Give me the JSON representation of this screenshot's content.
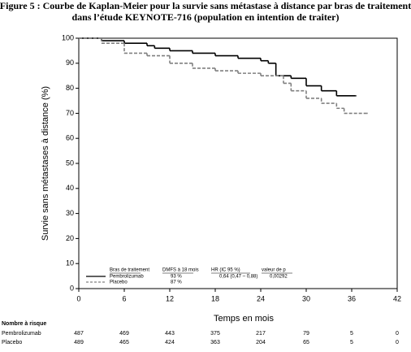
{
  "chart_data": {
    "type": "step",
    "title": [
      "Figure 5 : Courbe de Kaplan-Meier pour la survie sans métastase à distance par bras de traitement",
      "dans l’étude KEYNOTE-716 (population en intention de traiter)"
    ],
    "x_label": "Temps en mois",
    "y_label": "Survie sans métastases à distance (%)",
    "xlim": [
      0,
      42
    ],
    "xticks": [
      0,
      6,
      12,
      18,
      24,
      30,
      36,
      42
    ],
    "ylim": [
      0,
      100
    ],
    "yticks": [
      0,
      10,
      20,
      30,
      40,
      50,
      60,
      70,
      80,
      90,
      100
    ],
    "series": [
      {
        "name": "Pembrolizumab",
        "color": "#000000",
        "dash": false,
        "x": [
          0,
          3,
          6,
          9,
          10,
          12,
          15,
          18,
          21,
          24,
          25,
          26,
          28,
          30,
          32,
          34,
          36.5
        ],
        "values": [
          100,
          99,
          98,
          97,
          96,
          95,
          94,
          93,
          92,
          91,
          90,
          85,
          84,
          81,
          79,
          77,
          77
        ]
      },
      {
        "name": "Placebo",
        "color": "#808080",
        "dash": true,
        "x": [
          0,
          3,
          6,
          9,
          12,
          15,
          18,
          21,
          24,
          27,
          28,
          30,
          32,
          34,
          35,
          38
        ],
        "values": [
          100,
          98,
          94,
          93,
          90,
          88,
          87,
          86,
          85,
          82,
          79,
          76,
          74,
          72,
          70,
          70
        ]
      }
    ],
    "legend": {
      "headers": [
        "Bras de traitement",
        "DMFS à 18 mois",
        "HR (IC 95 %)",
        "valeur de p"
      ],
      "rows": [
        [
          "93 %",
          "0,64 (0,47 – 0,88)",
          "0,00292"
        ],
        [
          "87 %"
        ]
      ]
    },
    "risk_table": {
      "title": "Nombre à risque",
      "rows": [
        {
          "name": "Pembrolizumab",
          "values": [
            487,
            469,
            443,
            375,
            217,
            79,
            5,
            0
          ]
        },
        {
          "name": "Placebo",
          "values": [
            489,
            465,
            424,
            363,
            204,
            65,
            5,
            0
          ]
        }
      ]
    }
  }
}
